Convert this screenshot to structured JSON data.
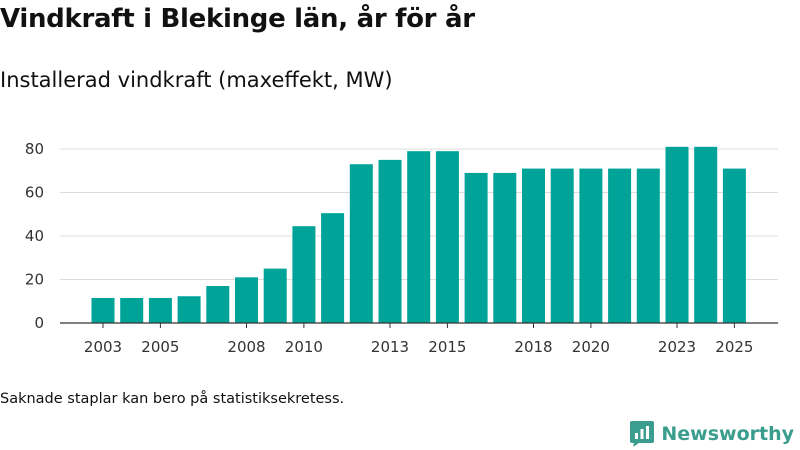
{
  "title": "Vindkraft i Blekinge län, år för år",
  "subtitle": "Installerad vindkraft (maxeffekt, MW)",
  "footnote": "Saknade staplar kan bero på statistiksekretess.",
  "brand": {
    "name": "Newsworthy",
    "logo_icon": "newsworthy-logo-icon",
    "color": "#3a9d8d"
  },
  "chart_data": {
    "type": "bar",
    "title": "Vindkraft i Blekinge län, år för år",
    "subtitle": "Installerad vindkraft (maxeffekt, MW)",
    "xlabel": "",
    "ylabel": "",
    "categories": [
      "2003",
      "2004",
      "2005",
      "2006",
      "2007",
      "2008",
      "2009",
      "2010",
      "2011",
      "2012",
      "2013",
      "2014",
      "2015",
      "2016",
      "2017",
      "2018",
      "2019",
      "2020",
      "2021",
      "2022",
      "2023",
      "2024",
      "2025"
    ],
    "x_tick_labels": [
      "2003",
      "2005",
      "2008",
      "2010",
      "2013",
      "2015",
      "2018",
      "2020",
      "2023",
      "2025"
    ],
    "values": [
      11.5,
      11.5,
      11.5,
      12.3,
      17,
      21,
      25,
      44.5,
      50.5,
      73,
      75,
      79,
      79,
      69,
      69,
      71,
      71,
      71,
      71,
      71,
      81,
      81,
      71
    ],
    "ylim": [
      0,
      90
    ],
    "y_ticks": [
      0,
      20,
      40,
      60,
      80
    ],
    "grid": true,
    "bar_color": "#00a398",
    "legend": "none"
  }
}
